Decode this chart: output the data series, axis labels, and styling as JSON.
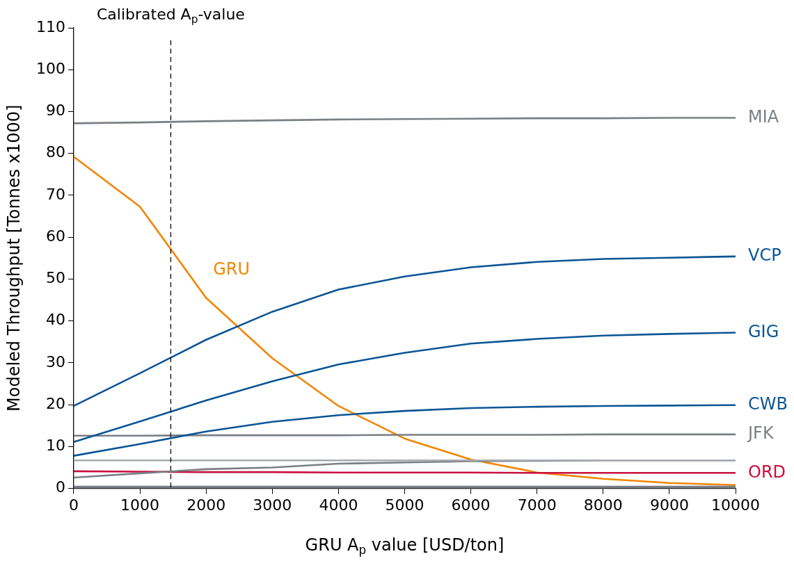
{
  "chart_data": {
    "type": "line",
    "xlabel": "GRU A$_{p}$ value [USD/ton]",
    "ylabel": "Modeled Throughput [Tonnes x1000]",
    "x": [
      0,
      1000,
      2000,
      3000,
      4000,
      5000,
      6000,
      7000,
      8000,
      9000,
      10000
    ],
    "series": [
      {
        "name": "MIA",
        "color": "#7a7f85",
        "values": [
          87.2,
          87.4,
          87.7,
          87.9,
          88.1,
          88.2,
          88.3,
          88.4,
          88.4,
          88.5,
          88.5
        ]
      },
      {
        "name": "VCP",
        "color": "#0a5596",
        "values": [
          19.7,
          27.5,
          35.5,
          42.2,
          47.5,
          50.6,
          52.8,
          54.1,
          54.8,
          55.1,
          55.4
        ]
      },
      {
        "name": "GIG",
        "color": "#0a5596",
        "values": [
          11.1,
          16,
          21,
          25.6,
          29.6,
          32.4,
          34.6,
          35.7,
          36.5,
          36.9,
          37.2
        ]
      },
      {
        "name": "CWB",
        "color": "#0a5596",
        "values": [
          7.8,
          10.6,
          13.6,
          15.9,
          17.5,
          18.5,
          19.2,
          19.5,
          19.7,
          19.8,
          19.9
        ]
      },
      {
        "name": "JFK",
        "color": "#7a7f85",
        "values": [
          12.6,
          12.6,
          12.7,
          12.7,
          12.7,
          12.8,
          12.8,
          12.8,
          12.9,
          12.9,
          12.9
        ]
      },
      {
        "color": "#a8abae",
        "values": [
          6.7,
          6.7,
          6.7,
          6.7,
          6.7,
          6.7,
          6.7,
          6.7,
          6.7,
          6.7,
          6.7
        ]
      },
      {
        "color": "#7a7f85",
        "values": [
          2.6,
          3.6,
          4.6,
          5.0,
          5.9,
          6.2,
          6.5,
          6.6,
          6.7,
          6.7,
          6.7
        ]
      },
      {
        "name": "ORD",
        "color": "#c8103e",
        "values": [
          4.1,
          4.0,
          3.9,
          3.9,
          3.8,
          3.8,
          3.8,
          3.7,
          3.7,
          3.7,
          3.7
        ]
      },
      {
        "color": "#7a7f85",
        "values": [
          0.3,
          0.3,
          0.3,
          0.3,
          0.3,
          0.3,
          0.3,
          0.3,
          0.3,
          0.3,
          0.3
        ]
      },
      {
        "name": "GRU",
        "color": "#f28500",
        "values": [
          79.2,
          67.3,
          45.5,
          31.1,
          19.7,
          11.9,
          6.9,
          3.8,
          2.3,
          1.3,
          0.8
        ]
      }
    ],
    "ref_lines": [
      {
        "axis": "x",
        "value": 1466,
        "label": "Calibrated A$_{p}$-value",
        "color": "#000000",
        "line_style": "dashed"
      }
    ],
    "xlim": [
      0,
      10000
    ],
    "xticks": [
      0,
      1000,
      2000,
      3000,
      4000,
      5000,
      6000,
      7000,
      8000,
      9000,
      10000
    ],
    "ylim": [
      0,
      110
    ],
    "yticks": [
      0,
      10,
      20,
      30,
      40,
      50,
      60,
      70,
      80,
      90,
      100,
      110
    ],
    "grid": false,
    "legend": false,
    "marker": "none",
    "line_style": "solid"
  }
}
